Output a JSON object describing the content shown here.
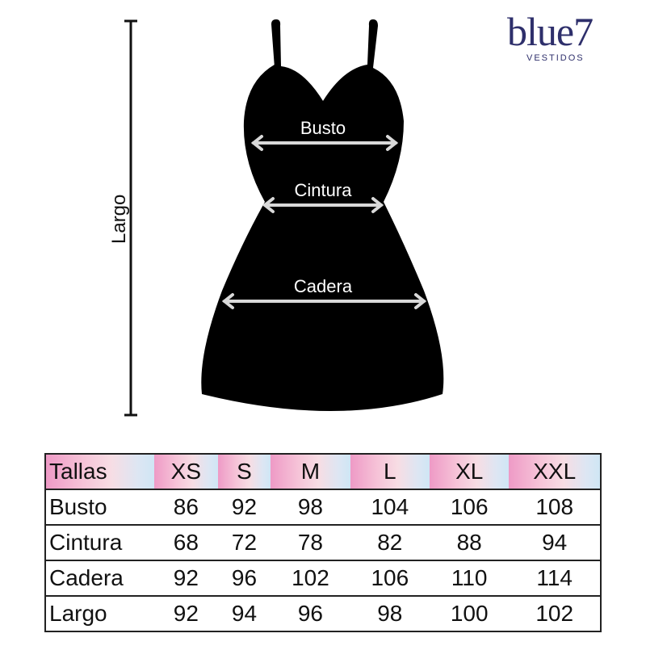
{
  "brand": {
    "name": "blue7",
    "subtitle": "VESTIDOS",
    "color": "#2e2f6b"
  },
  "figure": {
    "labels": {
      "bust": "Busto",
      "waist": "Cintura",
      "hip": "Cadera",
      "length": "Largo"
    },
    "dress_color": "#000000",
    "arrow_color": "#d9d9d9"
  },
  "table": {
    "header": [
      "Tallas",
      "XS",
      "S",
      "M",
      "L",
      "XL",
      "XXL"
    ],
    "rows": [
      [
        "Busto",
        "86",
        "92",
        "98",
        "104",
        "106",
        "108"
      ],
      [
        "Cintura",
        "68",
        "72",
        "78",
        "82",
        "88",
        "94"
      ],
      [
        "Cadera",
        "92",
        "96",
        "102",
        "106",
        "110",
        "114"
      ],
      [
        "Largo",
        "92",
        "94",
        "96",
        "98",
        "100",
        "102"
      ]
    ]
  }
}
